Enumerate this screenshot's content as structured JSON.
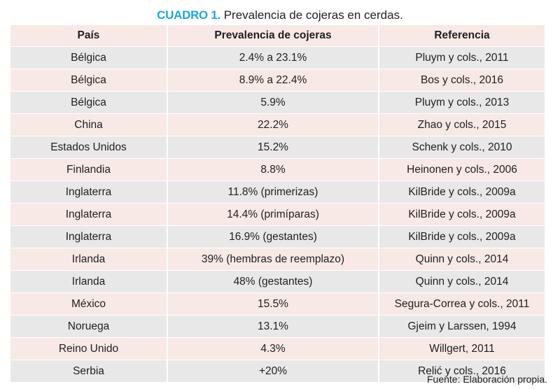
{
  "caption": {
    "label": "CUADRO 1.",
    "text": "Prevalencia de cojeras en cerdas."
  },
  "table": {
    "headers": [
      "País",
      "Prevalencia de cojeras",
      "Referencia"
    ],
    "rows": [
      [
        "Bélgica",
        "2.4% a 23.1%",
        "Pluym y cols., 2011"
      ],
      [
        "Bélgica",
        "8.9% a 22.4%",
        "Bos y cols., 2016"
      ],
      [
        "Bélgica",
        "5.9%",
        "Pluym y cols., 2013"
      ],
      [
        "China",
        "22.2%",
        "Zhao y cols., 2015"
      ],
      [
        "Estados Unidos",
        "15.2%",
        "Schenk y cols., 2010"
      ],
      [
        "Finlandia",
        "8.8%",
        "Heinonen y cols., 2006"
      ],
      [
        "Inglaterra",
        "11.8% (primerizas)",
        "KilBride y cols., 2009a"
      ],
      [
        "Inglaterra",
        "14.4% (primíparas)",
        "KilBride y cols., 2009a"
      ],
      [
        "Inglaterra",
        "16.9% (gestantes)",
        "KilBride y cols., 2009a"
      ],
      [
        "Irlanda",
        "39% (hembras de reemplazo)",
        "Quinn y cols., 2014"
      ],
      [
        "Irlanda",
        "48% (gestantes)",
        "Quinn y cols., 2014"
      ],
      [
        "México",
        "15.5%",
        "Segura-Correa y cols., 2011"
      ],
      [
        "Noruega",
        "13.1%",
        "Gjeim y Larssen, 1994"
      ],
      [
        "Reino Unido",
        "4.3%",
        "Willgert, 2011"
      ],
      [
        "Serbia",
        "+20%",
        "Relić y cols., 2016"
      ]
    ]
  },
  "source": "Fuente: Elaboración propia.",
  "colors": {
    "caption_label": "#1aa6e0",
    "row_pink": "#f8e9e6",
    "row_gray": "#e8e8e8"
  }
}
